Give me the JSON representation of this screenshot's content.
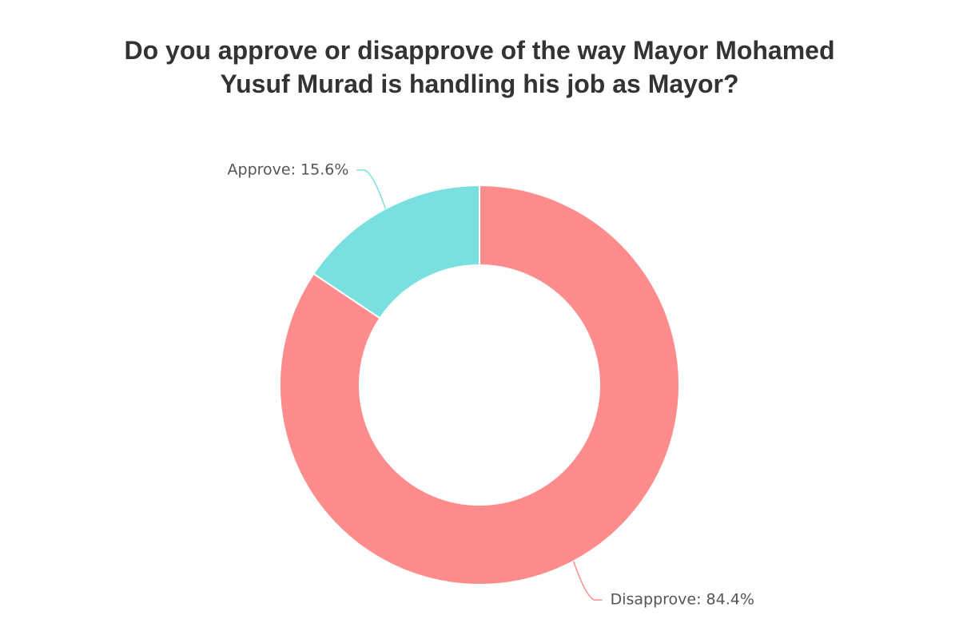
{
  "chart_data": {
    "type": "donut",
    "title": "Do you approve or disapprove of the way Mayor Mohamed Yusuf Murad is handling his job as Mayor?",
    "categories": [
      "Approve",
      "Disapprove"
    ],
    "values": [
      15.6,
      84.4
    ],
    "value_labels": [
      "Approve: 15.6%",
      "Disapprove: 84.4%"
    ],
    "colors": [
      "#79e0df",
      "#ff8c8c"
    ]
  }
}
